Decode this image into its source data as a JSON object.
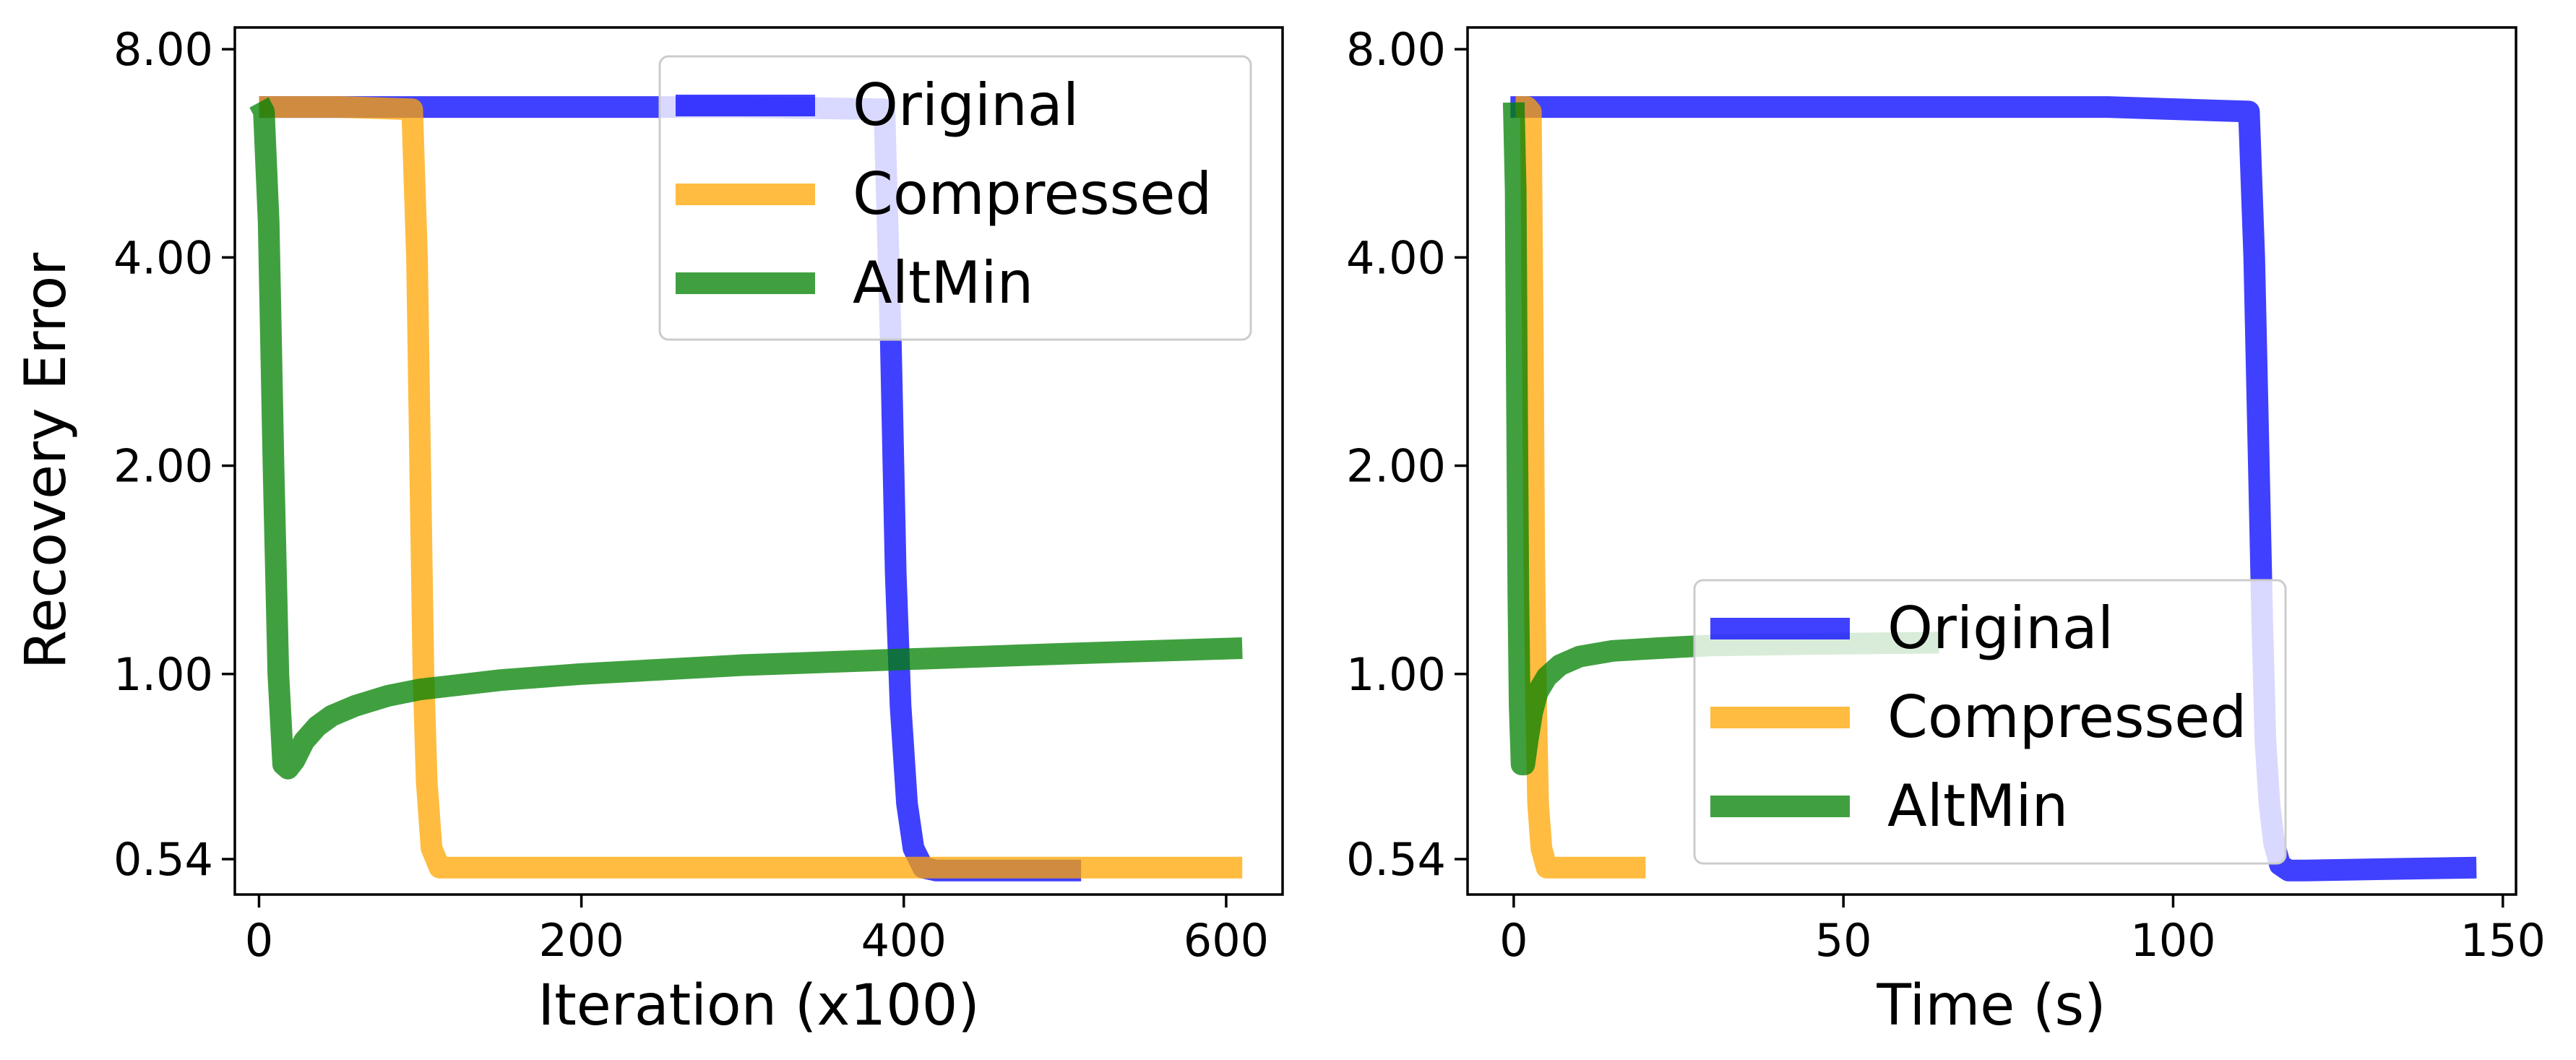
{
  "chart_data": [
    {
      "type": "line",
      "xlabel": "Iteration (x100)",
      "ylabel": "Recovery Error",
      "xlim": [
        -15,
        635
      ],
      "ylim": [
        0.48,
        8.6
      ],
      "yscale": "log",
      "xticks": [
        0,
        200,
        400,
        600
      ],
      "xtick_labels": [
        "0",
        "200",
        "400",
        "600"
      ],
      "yticks": [
        0.54,
        1.0,
        2.0,
        4.0,
        8.0
      ],
      "ytick_labels": [
        "0.54",
        "1.00",
        "2.00",
        "4.00",
        "8.00"
      ],
      "legend": {
        "placement": "top-right",
        "entries": [
          "Original",
          "Compressed",
          "AltMin"
        ]
      },
      "grid": false,
      "series": [
        {
          "name": "Original",
          "color": "#0000ff",
          "x": [
            0,
            100,
            200,
            300,
            388,
            392,
            395,
            398,
            402,
            406,
            412,
            420,
            450,
            510
          ],
          "y": [
            6.6,
            6.6,
            6.6,
            6.6,
            6.55,
            3.0,
            1.4,
            0.9,
            0.65,
            0.56,
            0.525,
            0.52,
            0.52,
            0.52
          ]
        },
        {
          "name": "Compressed",
          "color": "#ffa500",
          "x": [
            0,
            50,
            95,
            98,
            100,
            102,
            104,
            107,
            112,
            130,
            300,
            500,
            610
          ],
          "y": [
            6.6,
            6.6,
            6.55,
            4.0,
            2.0,
            1.0,
            0.7,
            0.56,
            0.525,
            0.525,
            0.525,
            0.525,
            0.525
          ]
        },
        {
          "name": "AltMin",
          "color": "#008000",
          "x": [
            0,
            3,
            6,
            9,
            12,
            15,
            18,
            22,
            28,
            36,
            45,
            60,
            80,
            100,
            150,
            200,
            300,
            400,
            500,
            610
          ],
          "y": [
            6.7,
            6.5,
            4.5,
            2.0,
            1.0,
            0.74,
            0.73,
            0.75,
            0.8,
            0.84,
            0.87,
            0.9,
            0.93,
            0.95,
            0.98,
            1.0,
            1.03,
            1.05,
            1.07,
            1.09
          ]
        }
      ]
    },
    {
      "type": "line",
      "xlabel": "Time (s)",
      "ylabel": "",
      "xlim": [
        -7,
        152
      ],
      "ylim": [
        0.48,
        8.6
      ],
      "yscale": "log",
      "xticks": [
        0,
        50,
        100,
        150
      ],
      "xtick_labels": [
        "0",
        "50",
        "100",
        "150"
      ],
      "yticks": [
        0.54,
        1.0,
        2.0,
        4.0,
        8.0
      ],
      "ytick_labels": [
        "0.54",
        "1.00",
        "2.00",
        "4.00",
        "8.00"
      ],
      "legend": {
        "placement": "lower-right",
        "entries": [
          "Original",
          "Compressed",
          "AltMin"
        ]
      },
      "grid": false,
      "series": [
        {
          "name": "Original",
          "color": "#0000ff",
          "x": [
            -0.5,
            30,
            60,
            90,
            111.5,
            112.3,
            113.0,
            113.5,
            114.0,
            114.6,
            115.3,
            116.2,
            117.5,
            120,
            130,
            146
          ],
          "y": [
            6.6,
            6.6,
            6.6,
            6.6,
            6.5,
            4.0,
            2.0,
            1.2,
            0.8,
            0.65,
            0.57,
            0.53,
            0.52,
            0.52,
            0.522,
            0.525
          ]
        },
        {
          "name": "Compressed",
          "color": "#ffa500",
          "x": [
            0.3,
            2.0,
            2.6,
            2.9,
            3.1,
            3.4,
            3.7,
            4.2,
            5,
            10,
            20
          ],
          "y": [
            6.6,
            6.6,
            6.5,
            3.0,
            1.5,
            0.9,
            0.65,
            0.56,
            0.525,
            0.525,
            0.525
          ],
          "mark_x_end": 19.5
        },
        {
          "name": "AltMin",
          "color": "#008000",
          "x": [
            0,
            0.3,
            0.5,
            0.7,
            0.9,
            1.2,
            1.6,
            2.1,
            2.8,
            3.6,
            5,
            7,
            10,
            15,
            22,
            30,
            45,
            64.5
          ],
          "y": [
            6.7,
            5.0,
            2.5,
            1.3,
            0.9,
            0.74,
            0.74,
            0.8,
            0.88,
            0.94,
            0.99,
            1.03,
            1.06,
            1.08,
            1.09,
            1.1,
            1.105,
            1.11
          ]
        }
      ]
    }
  ]
}
